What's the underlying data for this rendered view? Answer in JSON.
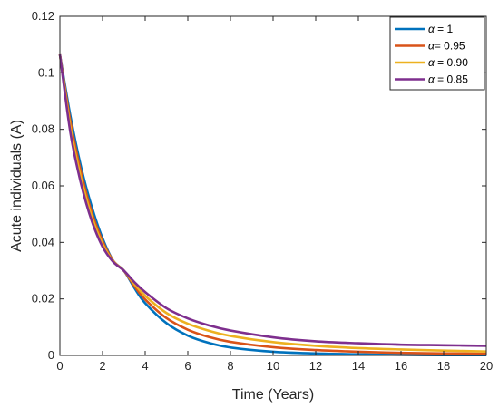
{
  "chart_data": {
    "type": "line",
    "title": "",
    "xlabel": "Time (Years)",
    "ylabel": "Acute individuals (A)",
    "xlim": [
      0,
      20
    ],
    "ylim": [
      0,
      0.12
    ],
    "xticks": [
      0,
      2,
      4,
      6,
      8,
      10,
      12,
      14,
      16,
      18,
      20
    ],
    "yticks": [
      0,
      0.02,
      0.04,
      0.06,
      0.08,
      0.1,
      0.12
    ],
    "ytick_labels": [
      "0",
      "0.02",
      "0.04",
      "0.06",
      "0.08",
      "0.1",
      "0.12"
    ],
    "grid": false,
    "legend_position": "top-right",
    "x": [
      0,
      0.5,
      1,
      1.5,
      2,
      2.5,
      3,
      3.5,
      4,
      5,
      6,
      7,
      8,
      10,
      12,
      14,
      16,
      18,
      20
    ],
    "series": [
      {
        "name": "α = 1",
        "legend_symbol": "α",
        "legend_suffix": " = 1",
        "color": "#0072BD",
        "values": [
          0.1065,
          0.0845,
          0.0665,
          0.0525,
          0.0415,
          0.0335,
          0.03,
          0.0238,
          0.0185,
          0.0114,
          0.007,
          0.0044,
          0.0028,
          0.0013,
          0.0007,
          0.0004,
          0.0002,
          0.0001,
          0.0001
        ]
      },
      {
        "name": "α= 0.95",
        "legend_symbol": "α",
        "legend_suffix": "= 0.95",
        "color": "#D95319",
        "values": [
          0.1065,
          0.0825,
          0.0645,
          0.0505,
          0.0405,
          0.0335,
          0.03,
          0.0245,
          0.0198,
          0.0132,
          0.0091,
          0.0065,
          0.0048,
          0.0029,
          0.0019,
          0.0013,
          0.0009,
          0.0007,
          0.0006
        ]
      },
      {
        "name": "α = 0.90",
        "legend_symbol": "α",
        "legend_suffix": " = 0.90",
        "color": "#EDB120",
        "values": [
          0.1065,
          0.0805,
          0.0625,
          0.049,
          0.0395,
          0.0333,
          0.03,
          0.0252,
          0.0211,
          0.015,
          0.0112,
          0.0087,
          0.0069,
          0.0047,
          0.0034,
          0.0026,
          0.0021,
          0.0017,
          0.0014
        ]
      },
      {
        "name": "α = 0.85",
        "legend_symbol": "α",
        "legend_suffix": " = 0.85",
        "color": "#7E2F8E",
        "values": [
          0.1065,
          0.0785,
          0.0605,
          0.0475,
          0.0385,
          0.0331,
          0.03,
          0.0259,
          0.0224,
          0.0167,
          0.0131,
          0.0106,
          0.0088,
          0.0064,
          0.005,
          0.0043,
          0.0038,
          0.0036,
          0.0034
        ]
      }
    ]
  }
}
